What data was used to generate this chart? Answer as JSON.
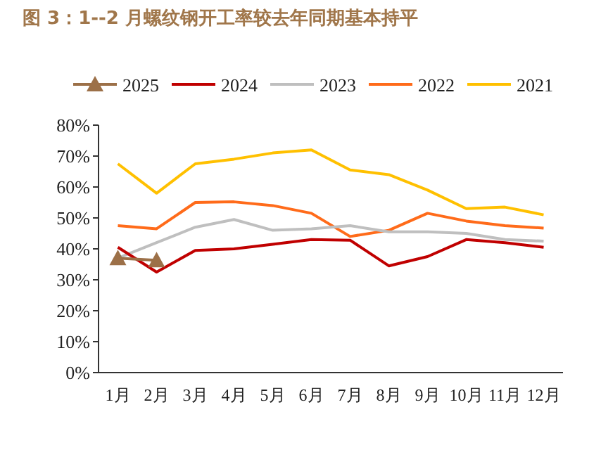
{
  "chart_data": {
    "type": "line",
    "title": "图 3：1--2 月螺纹钢开工率较去年同期基本持平",
    "categories": [
      "1月",
      "2月",
      "3月",
      "4月",
      "5月",
      "6月",
      "7月",
      "8月",
      "9月",
      "10月",
      "11月",
      "12月"
    ],
    "series": [
      {
        "name": "2025",
        "color": "#9c7048",
        "marker": "triangle",
        "values": [
          37,
          36.3,
          null,
          null,
          null,
          null,
          null,
          null,
          null,
          null,
          null,
          null
        ]
      },
      {
        "name": "2024",
        "color": "#c00000",
        "values": [
          40.5,
          32.5,
          39.5,
          40,
          41.5,
          43,
          42.8,
          34.5,
          37.5,
          43,
          42,
          40.5
        ]
      },
      {
        "name": "2023",
        "color": "#bfbfbf",
        "values": [
          37,
          42,
          47,
          49.5,
          46,
          46.5,
          47.5,
          45.5,
          45.5,
          45,
          43,
          42.5
        ]
      },
      {
        "name": "2022",
        "color": "#ff6b1a",
        "values": [
          47.5,
          46.5,
          55,
          55.2,
          54,
          51.5,
          44,
          46,
          51.5,
          49,
          47.5,
          46.7
        ]
      },
      {
        "name": "2021",
        "color": "#ffc000",
        "values": [
          67.5,
          58,
          67.5,
          69,
          71,
          72,
          65.5,
          64,
          59,
          53,
          53.5,
          51
        ]
      }
    ],
    "ylim": [
      0,
      80
    ],
    "yticks": [
      {
        "value": 0,
        "label": "0%"
      },
      {
        "value": 10,
        "label": "10%"
      },
      {
        "value": 20,
        "label": "20%"
      },
      {
        "value": 30,
        "label": "30%"
      },
      {
        "value": 40,
        "label": "40%"
      },
      {
        "value": 50,
        "label": "50%"
      },
      {
        "value": 60,
        "label": "60%"
      },
      {
        "value": 70,
        "label": "70%"
      },
      {
        "value": 80,
        "label": "80%"
      }
    ],
    "grid": false,
    "legend": "top",
    "line_style": "solid"
  }
}
